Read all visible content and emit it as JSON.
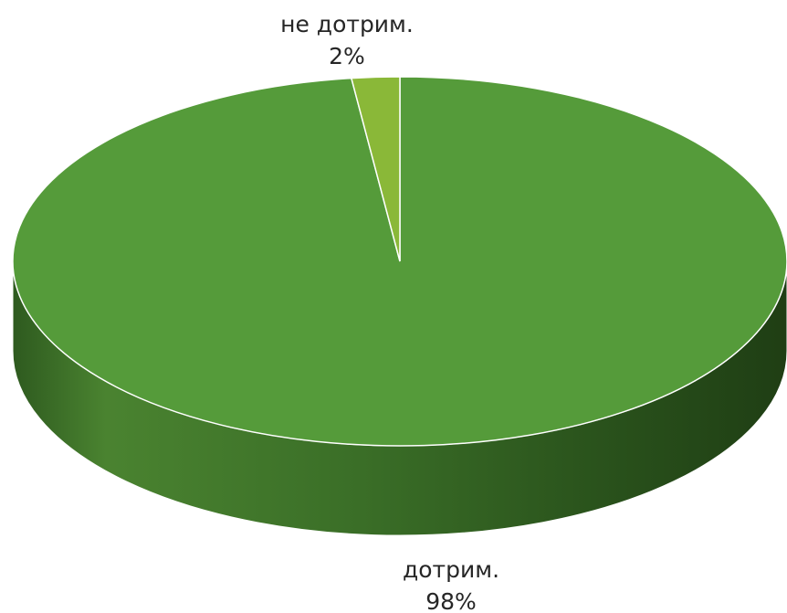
{
  "chart_data": {
    "type": "pie",
    "style": "3d",
    "title": "",
    "categories": [
      "не дотрим.",
      "дотрим."
    ],
    "values": [
      2,
      98
    ],
    "value_labels": [
      "2%",
      "98%"
    ],
    "colors": [
      "#8ab838",
      "#559b3a"
    ],
    "legend": "none"
  }
}
